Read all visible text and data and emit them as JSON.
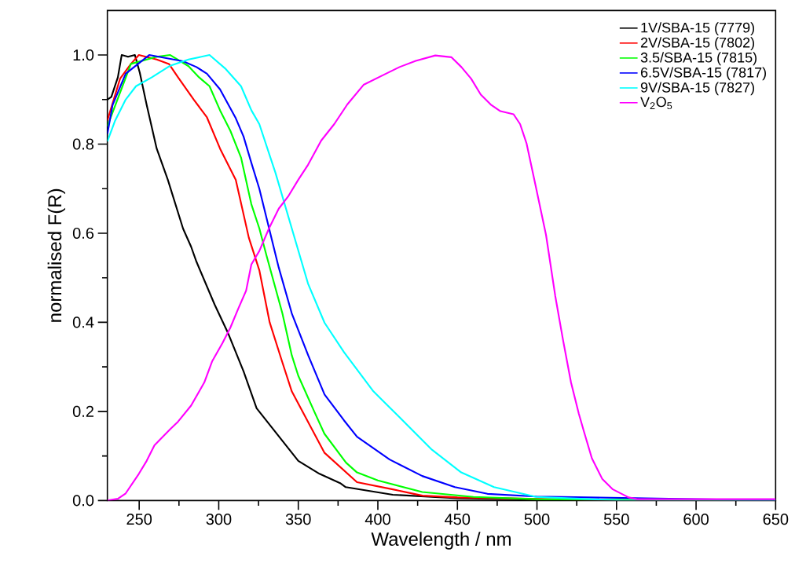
{
  "chart_data": {
    "type": "line",
    "xlabel": "Wavelength / nm",
    "ylabel": "normalised F(R)",
    "xlim": [
      230,
      650
    ],
    "ylim": [
      0,
      1.1
    ],
    "xticks": [
      250,
      {
        "value": 275,
        "label": null
      },
      300,
      {
        "value": 325,
        "label": null
      },
      350,
      {
        "value": 375,
        "label": null
      },
      400,
      {
        "value": 425,
        "label": null
      },
      450,
      {
        "value": 475,
        "label": null
      },
      500,
      {
        "value": 525,
        "label": null
      },
      550,
      {
        "value": 575,
        "label": null
      },
      600,
      {
        "value": 625,
        "label": null
      },
      650
    ],
    "yticks": [
      {
        "value": 0,
        "label": "0.0"
      },
      {
        "value": 0.1,
        "label": null
      },
      {
        "value": 0.2,
        "label": "0.2"
      },
      {
        "value": 0.3,
        "label": null
      },
      {
        "value": 0.4,
        "label": "0.4"
      },
      {
        "value": 0.5,
        "label": null
      },
      {
        "value": 0.6,
        "label": "0.6"
      },
      {
        "value": 0.7,
        "label": null
      },
      {
        "value": 0.8,
        "label": "0.8"
      },
      {
        "value": 0.9,
        "label": null
      },
      {
        "value": 1.0,
        "label": "1.0"
      }
    ],
    "grid": false,
    "legend": "top right",
    "marker": "none",
    "line_style": "solid",
    "series": [
      {
        "name": "1V/SBA-15 (7779)",
        "color": "#000000",
        "x": [
          230,
          232.5,
          236.6,
          239,
          243,
          247.3,
          250.4,
          254.7,
          261,
          268,
          277.6,
          282.6,
          286,
          297.4,
          305.7,
          315.6,
          323.8,
          336.9,
          350,
          363.3,
          376.3,
          379.8,
          409.4,
          450,
          500,
          550,
          650
        ],
        "values": [
          0.9,
          0.906,
          0.95,
          1.0,
          0.996,
          1.0,
          0.96,
          0.888,
          0.79,
          0.72,
          0.61,
          0.57,
          0.536,
          0.44,
          0.377,
          0.29,
          0.207,
          0.148,
          0.089,
          0.06,
          0.039,
          0.03,
          0.013,
          0.005,
          0.002,
          0,
          0
        ]
      },
      {
        "name": "2V/SBA-15 (7802)",
        "color": "#ff0000",
        "x": [
          230,
          238,
          244.8,
          249.8,
          261,
          268.7,
          274.4,
          284.3,
          292.6,
          300.8,
          310.7,
          318.9,
          325.5,
          332,
          340,
          345.9,
          351.6,
          366.5,
          386.9,
          409.4,
          428,
          450,
          500,
          550,
          650
        ],
        "values": [
          0.853,
          0.947,
          0.98,
          1.0,
          0.99,
          0.98,
          0.95,
          0.9,
          0.86,
          0.79,
          0.72,
          0.59,
          0.517,
          0.4,
          0.31,
          0.245,
          0.207,
          0.107,
          0.041,
          0.025,
          0.011,
          0.007,
          null,
          0,
          0
        ]
      },
      {
        "name": "3.5/SBA-15 (7815)",
        "color": "#00ff00",
        "x": [
          230,
          244.8,
          261,
          269.5,
          281,
          287.6,
          294.2,
          300.8,
          307.3,
          314,
          320.5,
          325.5,
          330,
          340,
          345.9,
          350,
          360,
          366.4,
          380,
          386.9,
          400,
          427.9,
          460,
          500,
          550,
          650
        ],
        "values": [
          0.84,
          0.98,
          0.996,
          1.0,
          0.975,
          0.95,
          0.93,
          0.876,
          0.83,
          0.77,
          0.665,
          0.611,
          0.55,
          0.42,
          0.326,
          0.28,
          0.2,
          0.15,
          0.085,
          0.063,
          0.045,
          0.019,
          0.008,
          0.003,
          null,
          0
        ]
      },
      {
        "name": "6.5V/SBA-15 (7817)",
        "color": "#0000ff",
        "x": [
          230,
          233.3,
          241.5,
          256.3,
          277.6,
          286,
          292.6,
          300.8,
          310.7,
          315.6,
          320.5,
          325.5,
          337.7,
          345.9,
          356.2,
          366.5,
          378.7,
          386.9,
          407.4,
          427.9,
          448.4,
          468.9,
          499.6,
          550,
          650
        ],
        "values": [
          0.823,
          0.888,
          0.958,
          1.0,
          0.986,
          0.973,
          0.958,
          0.923,
          0.858,
          0.817,
          0.758,
          0.7,
          0.523,
          0.42,
          0.326,
          0.238,
          0.18,
          0.143,
          0.092,
          0.055,
          0.03,
          0.015,
          0.009,
          null,
          0
        ]
      },
      {
        "name": "9V/SBA-15 (7827)",
        "color": "#00ffff",
        "x": [
          230,
          234.9,
          241.5,
          248,
          258,
          269.5,
          281,
          294.2,
          304,
          314,
          320.5,
          325.5,
          335.7,
          345.9,
          356.1,
          366.5,
          378.7,
          397.2,
          413.6,
          434,
          452.4,
          473,
          499.6,
          555,
          650
        ],
        "values": [
          0.806,
          0.853,
          0.9,
          0.93,
          0.95,
          0.976,
          0.99,
          1.0,
          0.97,
          0.93,
          0.876,
          0.845,
          0.735,
          0.611,
          0.487,
          0.399,
          0.333,
          0.245,
          0.187,
          0.114,
          0.063,
          0.03,
          0.008,
          0,
          0
        ]
      },
      {
        "name": "V$_{2}$O$_{5}$",
        "color": "#ff00ff",
        "x": [
          230,
          236.6,
          241.5,
          249.8,
          254.7,
          259.6,
          269.5,
          274.4,
          282.6,
          290.9,
          295.8,
          302.3,
          307.3,
          312.2,
          317.2,
          320.5,
          325.5,
          331.6,
          337.7,
          343.9,
          350,
          356.2,
          364.4,
          372.6,
          380.8,
          391,
          403.3,
          413.6,
          423.8,
          436.1,
          446.3,
          452.5,
          458.6,
          464.7,
          470.9,
          477,
          485.3,
          489.4,
          493.5,
          499.6,
          505.7,
          511.5,
          516.4,
          521.4,
          526.3,
          529.6,
          534.5,
          541.1,
          547.7,
          557.6,
          563,
          650
        ],
        "values": [
          0,
          0.004,
          0.016,
          0.06,
          0.089,
          0.124,
          0.16,
          0.177,
          0.213,
          0.265,
          0.312,
          0.353,
          0.388,
          0.43,
          0.471,
          0.53,
          0.56,
          0.611,
          0.655,
          0.684,
          0.72,
          0.754,
          0.808,
          0.845,
          0.889,
          0.933,
          0.955,
          0.973,
          0.987,
          0.999,
          0.995,
          0.973,
          0.947,
          0.911,
          0.889,
          0.874,
          0.867,
          0.845,
          0.801,
          0.699,
          0.596,
          0.459,
          0.36,
          0.265,
          0.195,
          0.154,
          0.095,
          0.048,
          0.025,
          0.007,
          0.003,
          0.003
        ]
      }
    ]
  }
}
